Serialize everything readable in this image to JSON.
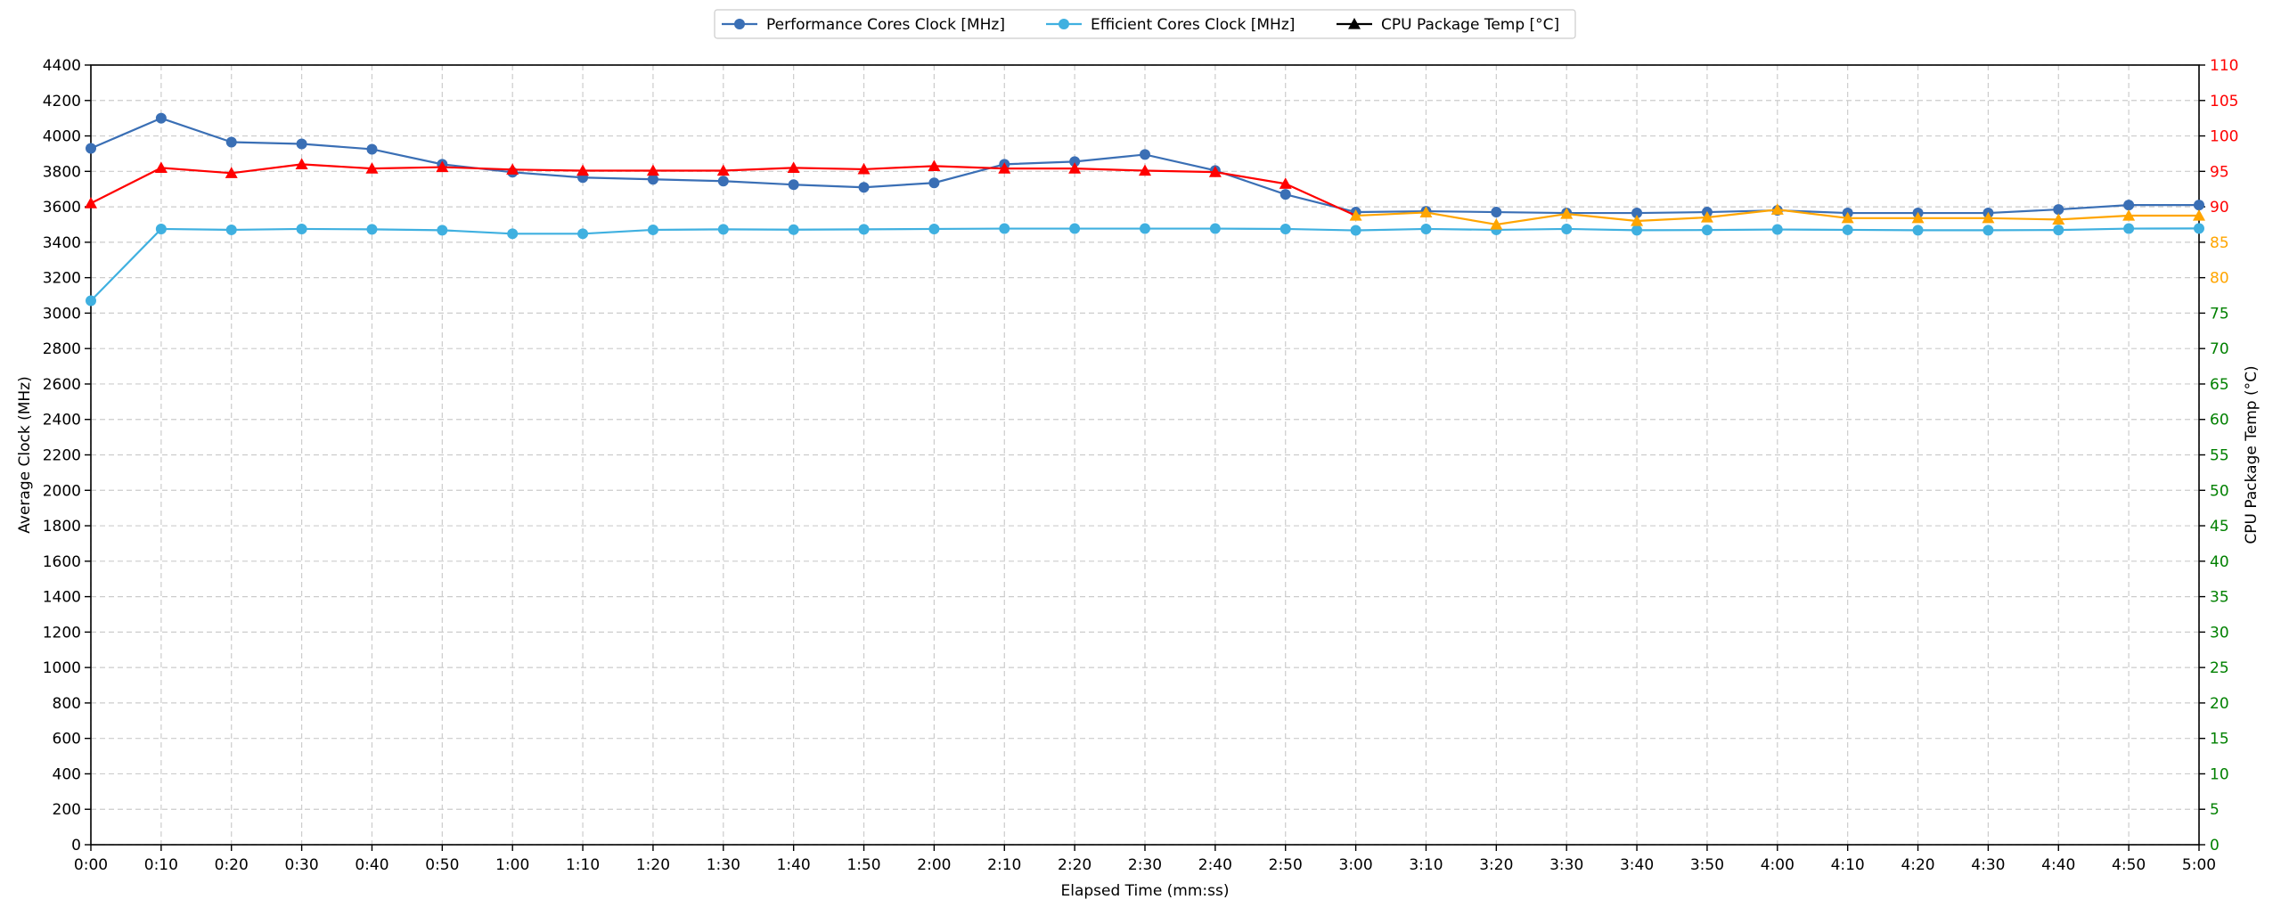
{
  "chart_data": {
    "type": "line",
    "xlabel": "Elapsed Time (mm:ss)",
    "ylabel": "Average Clock (MHz)",
    "y2label": "CPU Package Temp (°C)",
    "ylim": [
      0,
      4400
    ],
    "y2lim": [
      0,
      110
    ],
    "grid": true,
    "legend_position": "top-center",
    "x": [
      "0:00",
      "0:10",
      "0:20",
      "0:30",
      "0:40",
      "0:50",
      "1:00",
      "1:10",
      "1:20",
      "1:30",
      "1:40",
      "1:50",
      "2:00",
      "2:10",
      "2:20",
      "2:30",
      "2:40",
      "2:50",
      "3:00",
      "3:10",
      "3:20",
      "3:30",
      "3:40",
      "3:50",
      "4:00",
      "4:10",
      "4:20",
      "4:30",
      "4:40",
      "4:50",
      "5:00"
    ],
    "yticks": [
      0,
      200,
      400,
      600,
      800,
      1000,
      1200,
      1400,
      1600,
      1800,
      2000,
      2200,
      2400,
      2600,
      2800,
      3000,
      3200,
      3400,
      3600,
      3800,
      4000,
      4200,
      4400
    ],
    "y2ticks": [
      0,
      5,
      10,
      15,
      20,
      25,
      30,
      35,
      40,
      45,
      50,
      55,
      60,
      65,
      70,
      75,
      80,
      85,
      90,
      95,
      100,
      105,
      110
    ],
    "y2tick_colors": {
      "green": "#008000",
      "orange": "#ffa500",
      "red": "#ff0000"
    },
    "y2tick_color_bands": [
      {
        "max": 75,
        "color": "#008000"
      },
      {
        "max": 85,
        "color": "#ffa500"
      },
      {
        "max": 110,
        "color": "#ff0000"
      }
    ],
    "series": [
      {
        "name": "Performance Cores Clock [MHz]",
        "axis": "left",
        "marker": "circle",
        "color": "#3a6fb5",
        "values": [
          3930,
          4100,
          3965,
          3955,
          3925,
          3840,
          3795,
          3765,
          3755,
          3745,
          3725,
          3710,
          3735,
          3840,
          3855,
          3895,
          3805,
          3670,
          3570,
          3575,
          3570,
          3565,
          3565,
          3570,
          3580,
          3565,
          3565,
          3565,
          3585,
          3610,
          3610
        ]
      },
      {
        "name": "Efficient Cores Clock [MHz]",
        "axis": "left",
        "marker": "circle",
        "color": "#3fb0e0",
        "values": [
          3070,
          3475,
          3470,
          3475,
          3473,
          3468,
          3448,
          3448,
          3470,
          3473,
          3471,
          3473,
          3475,
          3477,
          3477,
          3477,
          3477,
          3475,
          3467,
          3475,
          3470,
          3475,
          3468,
          3469,
          3472,
          3470,
          3468,
          3468,
          3469,
          3477,
          3478
        ]
      },
      {
        "name": "CPU Package Temp [°C]",
        "axis": "right",
        "marker": "triangle",
        "legend_color": "#000000",
        "values": [
          90.5,
          95.5,
          94.75,
          96,
          95.4,
          95.6,
          95.25,
          95.1,
          95.1,
          95.1,
          95.5,
          95.3,
          95.75,
          95.4,
          95.4,
          95.1,
          94.9,
          93.25,
          88.75,
          89.2,
          87.5,
          89.0,
          88.0,
          88.5,
          89.6,
          88.4,
          88.4,
          88.4,
          88.2,
          88.75,
          88.75
        ],
        "segment_colors": {
          "hot": "#ff0000",
          "warm": "#ffa500"
        },
        "warm_from_index": 18
      }
    ]
  }
}
